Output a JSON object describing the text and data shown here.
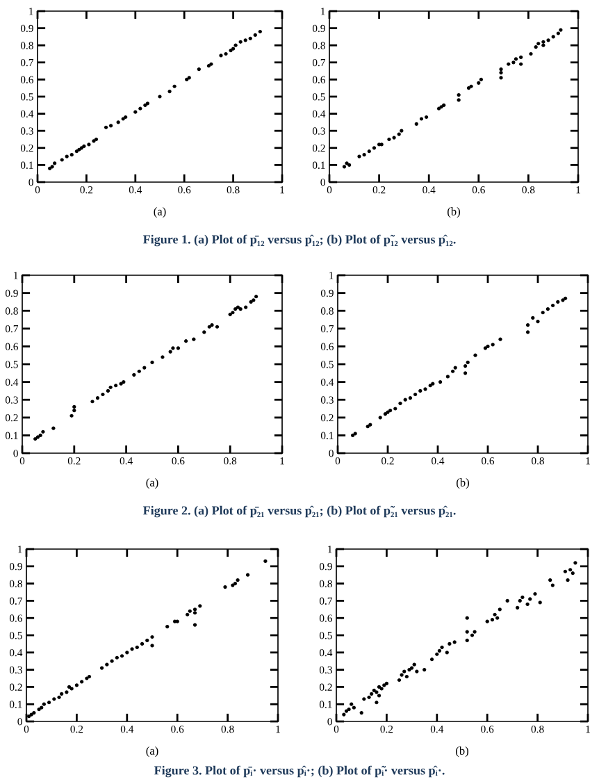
{
  "chart_data": [
    {
      "type": "scatter",
      "xlabel": "(a)",
      "marker": "circle",
      "xlim": [
        0,
        1
      ],
      "ylim": [
        0,
        1
      ],
      "xticks": [
        0,
        0.2,
        0.4,
        0.6,
        0.8,
        1
      ],
      "yticks": [
        0,
        0.1,
        0.2,
        0.3,
        0.4,
        0.5,
        0.6,
        0.7,
        0.8,
        0.9,
        1
      ],
      "series": [
        {
          "color": "#000000",
          "x": [
            0.05,
            0.06,
            0.07,
            0.1,
            0.12,
            0.14,
            0.16,
            0.17,
            0.18,
            0.19,
            0.21,
            0.23,
            0.24,
            0.28,
            0.3,
            0.33,
            0.35,
            0.36,
            0.4,
            0.42,
            0.44,
            0.45,
            0.5,
            0.54,
            0.56,
            0.61,
            0.62,
            0.66,
            0.7,
            0.71,
            0.75,
            0.77,
            0.79,
            0.8,
            0.81,
            0.83,
            0.85,
            0.87,
            0.89,
            0.91
          ],
          "values": [
            0.08,
            0.09,
            0.11,
            0.13,
            0.15,
            0.16,
            0.18,
            0.19,
            0.2,
            0.21,
            0.22,
            0.24,
            0.25,
            0.32,
            0.33,
            0.35,
            0.37,
            0.38,
            0.41,
            0.43,
            0.45,
            0.46,
            0.5,
            0.53,
            0.56,
            0.6,
            0.61,
            0.66,
            0.68,
            0.69,
            0.74,
            0.75,
            0.77,
            0.78,
            0.8,
            0.82,
            0.83,
            0.84,
            0.86,
            0.88
          ]
        }
      ],
      "annotations": [
        "Figure 1. (a) Plot of p̄₁₂ versus p̂₁₂; (b) Plot of p̃₁₂ versus p̂₁₂."
      ]
    },
    {
      "type": "scatter",
      "xlabel": "(b)",
      "marker": "circle",
      "xlim": [
        0,
        1
      ],
      "ylim": [
        0,
        1
      ],
      "xticks": [
        0,
        0.2,
        0.4,
        0.6,
        0.8,
        1
      ],
      "yticks": [
        0,
        0.1,
        0.2,
        0.3,
        0.4,
        0.5,
        0.6,
        0.7,
        0.8,
        0.9,
        1
      ],
      "series": [
        {
          "color": "#000000",
          "x": [
            0.06,
            0.07,
            0.08,
            0.12,
            0.14,
            0.16,
            0.18,
            0.2,
            0.21,
            0.24,
            0.26,
            0.28,
            0.29,
            0.35,
            0.37,
            0.39,
            0.44,
            0.45,
            0.46,
            0.52,
            0.52,
            0.56,
            0.57,
            0.6,
            0.61,
            0.69,
            0.69,
            0.69,
            0.72,
            0.74,
            0.75,
            0.77,
            0.77,
            0.81,
            0.83,
            0.84,
            0.86,
            0.86,
            0.88,
            0.9,
            0.92,
            0.93
          ],
          "values": [
            0.09,
            0.11,
            0.1,
            0.15,
            0.16,
            0.18,
            0.2,
            0.22,
            0.22,
            0.25,
            0.26,
            0.28,
            0.3,
            0.34,
            0.37,
            0.38,
            0.43,
            0.44,
            0.45,
            0.48,
            0.51,
            0.55,
            0.56,
            0.58,
            0.6,
            0.61,
            0.64,
            0.66,
            0.69,
            0.7,
            0.72,
            0.69,
            0.73,
            0.75,
            0.79,
            0.81,
            0.8,
            0.82,
            0.83,
            0.85,
            0.87,
            0.89
          ]
        }
      ]
    },
    {
      "type": "scatter",
      "xlabel": "(a)",
      "marker": "circle",
      "xlim": [
        0,
        1
      ],
      "ylim": [
        0,
        1
      ],
      "xticks": [
        0,
        0.2,
        0.4,
        0.6,
        0.8,
        1
      ],
      "yticks": [
        0,
        0.1,
        0.2,
        0.3,
        0.4,
        0.5,
        0.6,
        0.7,
        0.8,
        0.9,
        1
      ],
      "series": [
        {
          "color": "#000000",
          "x": [
            0.05,
            0.06,
            0.07,
            0.08,
            0.12,
            0.19,
            0.2,
            0.2,
            0.27,
            0.29,
            0.31,
            0.33,
            0.34,
            0.36,
            0.38,
            0.39,
            0.43,
            0.45,
            0.47,
            0.5,
            0.54,
            0.57,
            0.58,
            0.6,
            0.63,
            0.66,
            0.7,
            0.72,
            0.73,
            0.75,
            0.8,
            0.81,
            0.82,
            0.83,
            0.84,
            0.86,
            0.88,
            0.89,
            0.9
          ],
          "values": [
            0.08,
            0.09,
            0.1,
            0.12,
            0.14,
            0.21,
            0.24,
            0.26,
            0.29,
            0.31,
            0.33,
            0.35,
            0.37,
            0.38,
            0.39,
            0.4,
            0.44,
            0.46,
            0.48,
            0.51,
            0.54,
            0.57,
            0.59,
            0.59,
            0.63,
            0.64,
            0.68,
            0.71,
            0.72,
            0.71,
            0.78,
            0.79,
            0.81,
            0.82,
            0.81,
            0.82,
            0.85,
            0.86,
            0.88
          ]
        }
      ],
      "annotations": [
        "Figure 2. (a) Plot of p̄₂₁ versus p̂₂₁; (b) Plot of p̃₂₁ versus p̂₂₁."
      ]
    },
    {
      "type": "scatter",
      "xlabel": "(b)",
      "marker": "circle",
      "xlim": [
        0,
        1
      ],
      "ylim": [
        0,
        1
      ],
      "xticks": [
        0,
        0.2,
        0.4,
        0.6,
        0.8,
        1
      ],
      "yticks": [
        0,
        0.1,
        0.2,
        0.3,
        0.4,
        0.5,
        0.6,
        0.7,
        0.8,
        0.9,
        1
      ],
      "series": [
        {
          "color": "#000000",
          "x": [
            0.06,
            0.07,
            0.12,
            0.13,
            0.17,
            0.19,
            0.2,
            0.21,
            0.23,
            0.25,
            0.27,
            0.29,
            0.31,
            0.33,
            0.35,
            0.37,
            0.38,
            0.41,
            0.44,
            0.46,
            0.47,
            0.51,
            0.51,
            0.52,
            0.55,
            0.59,
            0.6,
            0.62,
            0.65,
            0.76,
            0.76,
            0.78,
            0.8,
            0.82,
            0.84,
            0.86,
            0.88,
            0.9,
            0.91
          ],
          "values": [
            0.1,
            0.11,
            0.15,
            0.16,
            0.2,
            0.22,
            0.23,
            0.24,
            0.25,
            0.28,
            0.3,
            0.31,
            0.33,
            0.35,
            0.36,
            0.38,
            0.39,
            0.4,
            0.43,
            0.46,
            0.48,
            0.45,
            0.49,
            0.51,
            0.55,
            0.59,
            0.6,
            0.61,
            0.64,
            0.68,
            0.72,
            0.76,
            0.74,
            0.79,
            0.81,
            0.83,
            0.85,
            0.86,
            0.87
          ]
        }
      ]
    },
    {
      "type": "scatter",
      "xlabel": "(a)",
      "marker": "circle",
      "xlim": [
        0,
        1
      ],
      "ylim": [
        0,
        1
      ],
      "xticks": [
        0,
        0.2,
        0.4,
        0.6,
        0.8,
        1
      ],
      "yticks": [
        0,
        0.1,
        0.2,
        0.3,
        0.4,
        0.5,
        0.6,
        0.7,
        0.8,
        0.9,
        1
      ],
      "series": [
        {
          "color": "#000000",
          "x": [
            0.01,
            0.02,
            0.03,
            0.05,
            0.06,
            0.07,
            0.09,
            0.11,
            0.13,
            0.14,
            0.16,
            0.17,
            0.18,
            0.2,
            0.22,
            0.24,
            0.25,
            0.3,
            0.32,
            0.34,
            0.36,
            0.38,
            0.4,
            0.42,
            0.44,
            0.46,
            0.48,
            0.5,
            0.5,
            0.56,
            0.59,
            0.6,
            0.64,
            0.65,
            0.67,
            0.67,
            0.67,
            0.69,
            0.79,
            0.82,
            0.83,
            0.84,
            0.88,
            0.95
          ],
          "values": [
            0.03,
            0.04,
            0.05,
            0.07,
            0.08,
            0.1,
            0.11,
            0.13,
            0.14,
            0.16,
            0.17,
            0.2,
            0.19,
            0.21,
            0.23,
            0.25,
            0.26,
            0.31,
            0.33,
            0.35,
            0.37,
            0.38,
            0.4,
            0.42,
            0.43,
            0.45,
            0.47,
            0.49,
            0.44,
            0.55,
            0.58,
            0.58,
            0.62,
            0.64,
            0.56,
            0.63,
            0.65,
            0.67,
            0.78,
            0.79,
            0.8,
            0.82,
            0.85,
            0.93
          ]
        }
      ],
      "annotations": [
        "Figure 3. Plot of p̄ᵢ· versus p̂ᵢ·; (b) Plot of p̃ᵢ· versus p̂ᵢ·."
      ]
    },
    {
      "type": "scatter",
      "xlabel": "(b)",
      "marker": "circle",
      "xlim": [
        0,
        1
      ],
      "ylim": [
        0,
        1
      ],
      "xticks": [
        0,
        0.2,
        0.4,
        0.6,
        0.8,
        1
      ],
      "yticks": [
        0,
        0.1,
        0.2,
        0.3,
        0.4,
        0.5,
        0.6,
        0.7,
        0.8,
        0.9,
        1
      ],
      "series": [
        {
          "color": "#000000",
          "x": [
            0.03,
            0.04,
            0.05,
            0.06,
            0.07,
            0.1,
            0.11,
            0.13,
            0.14,
            0.15,
            0.16,
            0.16,
            0.17,
            0.17,
            0.18,
            0.19,
            0.2,
            0.25,
            0.26,
            0.27,
            0.28,
            0.29,
            0.3,
            0.31,
            0.32,
            0.35,
            0.38,
            0.4,
            0.41,
            0.42,
            0.44,
            0.45,
            0.47,
            0.52,
            0.52,
            0.52,
            0.54,
            0.55,
            0.6,
            0.62,
            0.63,
            0.64,
            0.65,
            0.68,
            0.72,
            0.73,
            0.74,
            0.76,
            0.77,
            0.79,
            0.81,
            0.85,
            0.86,
            0.91,
            0.92,
            0.93,
            0.94,
            0.95
          ],
          "values": [
            0.04,
            0.06,
            0.07,
            0.1,
            0.08,
            0.05,
            0.13,
            0.14,
            0.16,
            0.18,
            0.11,
            0.17,
            0.15,
            0.2,
            0.19,
            0.21,
            0.22,
            0.24,
            0.27,
            0.29,
            0.26,
            0.3,
            0.31,
            0.33,
            0.29,
            0.3,
            0.36,
            0.39,
            0.41,
            0.43,
            0.4,
            0.45,
            0.46,
            0.47,
            0.52,
            0.6,
            0.5,
            0.52,
            0.58,
            0.59,
            0.62,
            0.6,
            0.65,
            0.7,
            0.66,
            0.7,
            0.72,
            0.68,
            0.71,
            0.74,
            0.69,
            0.82,
            0.79,
            0.87,
            0.82,
            0.88,
            0.86,
            0.92
          ]
        }
      ]
    }
  ]
}
